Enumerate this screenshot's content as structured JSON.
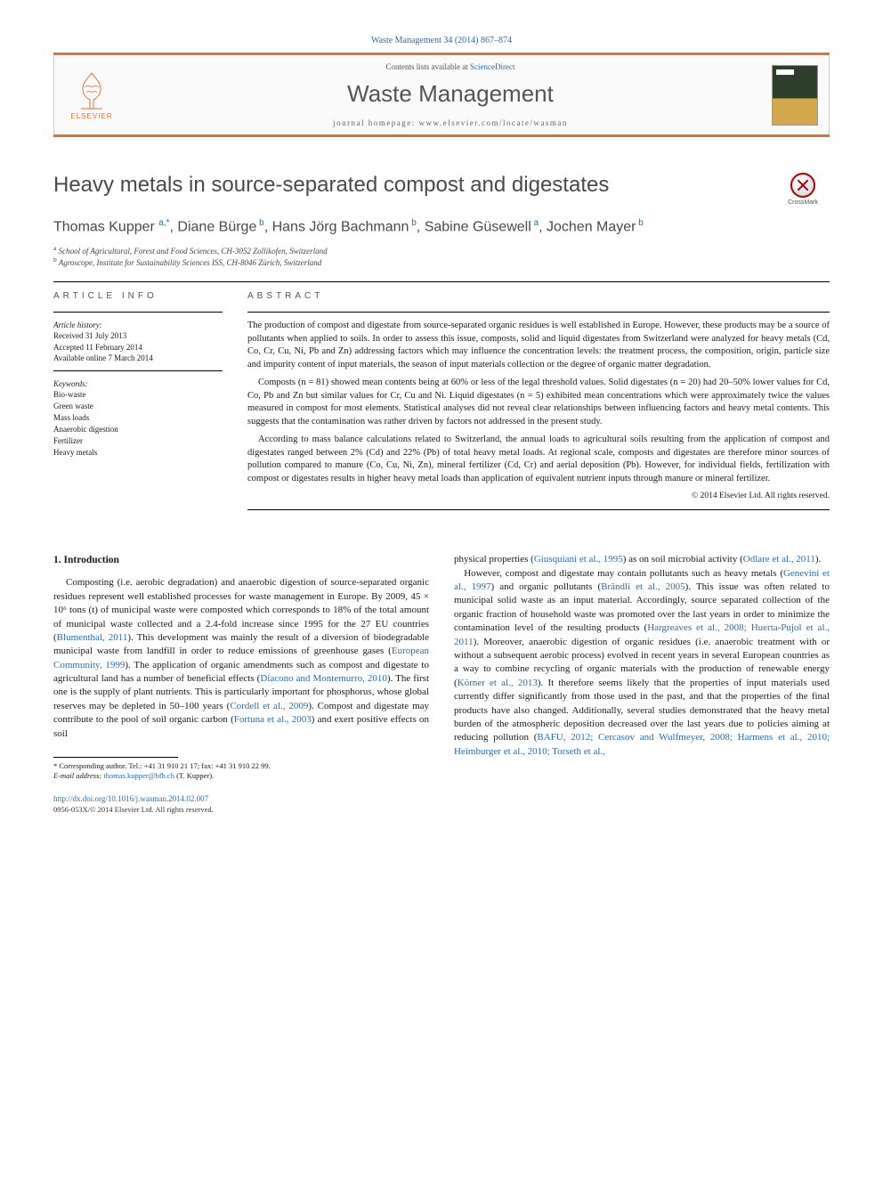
{
  "citation": "Waste Management 34 (2014) 867–874",
  "header": {
    "contents_prefix": "Contents lists available at ",
    "contents_link": "ScienceDirect",
    "journal": "Waste Management",
    "homepage_label": "journal homepage: ",
    "homepage_url": "www.elsevier.com/locate/wasman",
    "publisher": "ELSEVIER"
  },
  "crossmark_label": "CrossMark",
  "title": "Heavy metals in source-separated compost and digestates",
  "authors_html": "Thomas Kupper <sup>a,*</sup>, Diane Bürge<sup> b</sup>, Hans Jörg Bachmann<sup> b</sup>, Sabine Güsewell<sup> a</sup>, Jochen Mayer<sup> b</sup>",
  "affiliations": {
    "a": "School of Agricultural, Forest and Food Sciences, CH-3052 Zollikofen, Switzerland",
    "b": "Agroscope, Institute for Sustainability Sciences ISS, CH-8046 Zürich, Switzerland"
  },
  "info": {
    "heading": "article info",
    "history_label": "Article history:",
    "received": "Received 31 July 2013",
    "accepted": "Accepted 11 February 2014",
    "online": "Available online 7 March 2014",
    "keywords_label": "Keywords:",
    "keywords": [
      "Bio-waste",
      "Green waste",
      "Mass loads",
      "Anaerobic digestion",
      "Fertilizer",
      "Heavy metals"
    ]
  },
  "abstract": {
    "heading": "abstract",
    "p1": "The production of compost and digestate from source-separated organic residues is well established in Europe. However, these products may be a source of pollutants when applied to soils. In order to assess this issue, composts, solid and liquid digestates from Switzerland were analyzed for heavy metals (Cd, Co, Cr, Cu, Ni, Pb and Zn) addressing factors which may influence the concentration levels: the treatment process, the composition, origin, particle size and impurity content of input materials, the season of input materials collection or the degree of organic matter degradation.",
    "p2": "Composts (n = 81) showed mean contents being at 60% or less of the legal threshold values. Solid digestates (n = 20) had 20–50% lower values for Cd, Co, Pb and Zn but similar values for Cr, Cu and Ni. Liquid digestates (n = 5) exhibited mean concentrations which were approximately twice the values measured in compost for most elements. Statistical analyses did not reveal clear relationships between influencing factors and heavy metal contents. This suggests that the contamination was rather driven by factors not addressed in the present study.",
    "p3": "According to mass balance calculations related to Switzerland, the annual loads to agricultural soils resulting from the application of compost and digestates ranged between 2% (Cd) and 22% (Pb) of total heavy metal loads. At regional scale, composts and digestates are therefore minor sources of pollution compared to manure (Co, Cu, Ni, Zn), mineral fertilizer (Cd, Cr) and aerial deposition (Pb). However, for individual fields, fertilization with compost or digestates results in higher heavy metal loads than application of equivalent nutrient inputs through manure or mineral fertilizer.",
    "copyright": "© 2014 Elsevier Ltd. All rights reserved."
  },
  "body": {
    "heading": "1. Introduction",
    "left": "Composting (i.e. aerobic degradation) and anaerobic digestion of source-separated organic residues represent well established processes for waste management in Europe. By 2009, 45 × 10⁶ tons (t) of municipal waste were composted which corresponds to 18% of the total amount of municipal waste collected and a 2.4-fold increase since 1995 for the 27 EU countries (<a class='ref'>Blumenthal, 2011</a>). This development was mainly the result of a diversion of biodegradable municipal waste from landfill in order to reduce emissions of greenhouse gases (<a class='ref'>European Community, 1999</a>). The application of organic amendments such as compost and digestate to agricultural land has a number of beneficial effects (<a class='ref'>Diacono and Montemurro, 2010</a>). The first one is the supply of plant nutrients. This is particularly important for phosphorus, whose global reserves may be depleted in 50–100 years (<a class='ref'>Cordell et al., 2009</a>). Compost and digestate may contribute to the pool of soil organic carbon (<a class='ref'>Fortuna et al., 2003</a>) and exert positive effects on soil",
    "right": "physical properties (<a class='ref'>Giusquiani et al., 1995</a>) as on soil microbial activity (<a class='ref'>Odlare et al., 2011</a>).<br>&nbsp;&nbsp;&nbsp;However, compost and digestate may contain pollutants such as heavy metals (<a class='ref'>Genevini et al., 1997</a>) and organic pollutants (<a class='ref'>Brändli et al., 2005</a>). This issue was often related to municipal solid waste as an input material. Accordingly, source separated collection of the organic fraction of household waste was promoted over the last years in order to minimize the contamination level of the resulting products (<a class='ref'>Hargreaves et al., 2008; Huerta-Pujol et al., 2011</a>). Moreover, anaerobic digestion of organic residues (i.e. anaerobic treatment with or without a subsequent aerobic process) evolved in recent years in several European countries as a way to combine recycling of organic materials with the production of renewable energy (<a class='ref'>Körner et al., 2013</a>). It therefore seems likely that the properties of input materials used currently differ significantly from those used in the past, and that the properties of the final products have also changed. Additionally, several studies demonstrated that the heavy metal burden of the atmospheric deposition decreased over the last years due to policies aiming at reducing pollution (<a class='ref'>BAFU, 2012; Cercasov and Wulfmeyer, 2008; Harmens et al., 2010; Heimburger et al., 2010; Torseth et al.,</a>"
  },
  "footnote": {
    "corr": "* Corresponding author. Tel.: +41 31 910 21 17; fax: +41 31 910 22 99.",
    "email_label": "E-mail address:",
    "email": "thomas.kupper@bfh.ch",
    "email_suffix": "(T. Kupper)."
  },
  "doi": {
    "url": "http://dx.doi.org/10.1016/j.wasman.2014.02.007",
    "issn_copy": "0956-053X/© 2014 Elsevier Ltd. All rights reserved."
  },
  "colors": {
    "accent": "#d97534",
    "link": "#2b6cb0",
    "text": "#1a1a1a",
    "muted": "#555555"
  }
}
